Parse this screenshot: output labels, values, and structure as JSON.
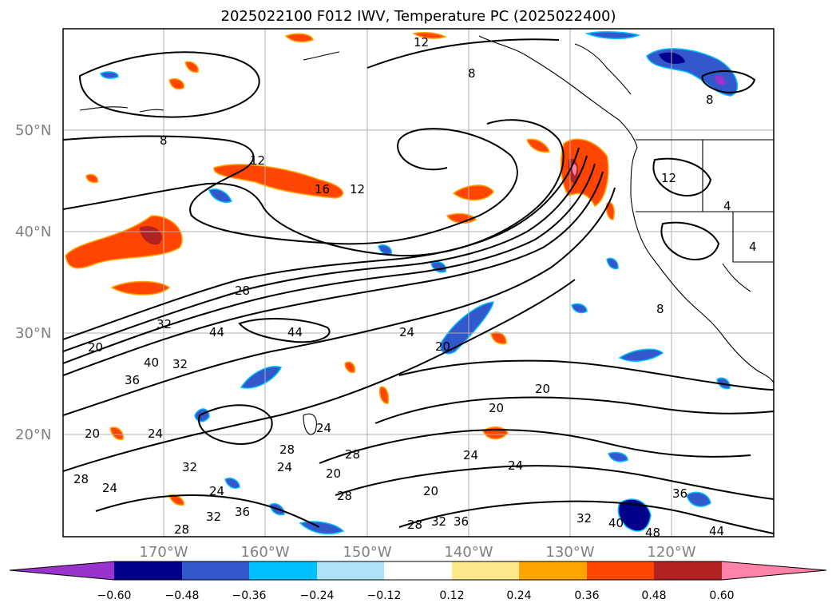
{
  "title": "2025022100 F012 IWV, Temperature PC (2025022400)",
  "lat_labels": [
    "50°N",
    "40°N",
    "30°N",
    "20°N"
  ],
  "lon_labels": [
    "170°W",
    "160°W",
    "150°W",
    "140°W",
    "130°W",
    "120°W"
  ],
  "colorbar": {
    "tick_labels": [
      "−0.60",
      "−0.48",
      "−0.36",
      "−0.24",
      "−0.12",
      "0.12",
      "0.24",
      "0.36",
      "0.48",
      "0.60"
    ],
    "colors": [
      "#9933cc",
      "#00008b",
      "#3358cc",
      "#00bfff",
      "#ade1fa",
      "#ffffff",
      "#ffe88c",
      "#ffa500",
      "#ff4500",
      "#b22222",
      "#ff82a8"
    ]
  },
  "contour_labels": [
    "12",
    "8",
    "8",
    "8",
    "12",
    "16",
    "4",
    "4",
    "12",
    "28",
    "32",
    "44",
    "44",
    "20",
    "40",
    "32",
    "36",
    "24",
    "20",
    "24",
    "20",
    "20",
    "24",
    "28",
    "24",
    "28",
    "20",
    "28",
    "20",
    "24",
    "24",
    "28",
    "24",
    "32",
    "24",
    "28",
    "32",
    "36",
    "28",
    "32",
    "36",
    "32",
    "40",
    "48",
    "44",
    "36",
    "8",
    "20",
    "12"
  ]
}
